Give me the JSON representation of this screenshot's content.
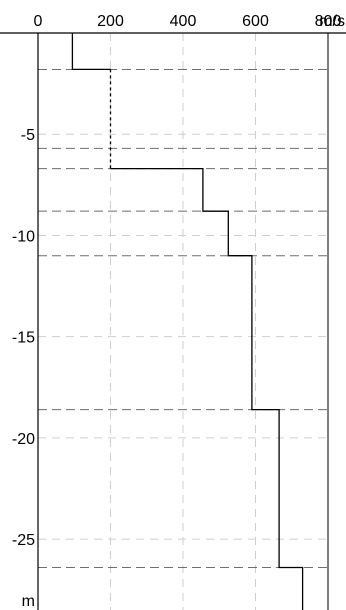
{
  "chart_data": {
    "type": "line",
    "x_axis": {
      "label": "m/s",
      "range": [
        0,
        800
      ],
      "ticks": [
        0,
        200,
        400,
        600,
        800
      ],
      "tick_labels": [
        "0",
        "200",
        "400",
        "600",
        "800"
      ],
      "position": "top"
    },
    "y_axis": {
      "label": "m",
      "range": [
        0,
        -28.5
      ],
      "ticks": [
        -5,
        -10,
        -15,
        -20,
        -25
      ],
      "tick_labels": [
        "-5",
        "-10",
        "-15",
        "-20",
        "-25"
      ]
    },
    "grid": true,
    "layer_boundaries": [
      -1.8,
      -5.7,
      -6.7,
      -8.8,
      -11.0,
      -18.6,
      -26.4
    ],
    "series": [
      {
        "style": "solid",
        "x": [
          95,
          95,
          200
        ],
        "y": [
          0,
          -1.8,
          -1.8
        ]
      },
      {
        "style": "dashed",
        "x": [
          200,
          200
        ],
        "y": [
          -1.8,
          -6.7
        ]
      },
      {
        "style": "solid",
        "x": [
          200,
          455,
          455,
          525,
          525,
          580,
          580,
          590,
          590,
          665,
          665,
          730,
          730,
          730
        ],
        "y": [
          -6.7,
          -6.7,
          -8.8,
          -8.8,
          -11.0,
          -11.0,
          -11.0,
          -11.0,
          -18.6,
          -18.6,
          -26.4,
          -26.4,
          -26.4,
          -28.5
        ]
      }
    ]
  }
}
